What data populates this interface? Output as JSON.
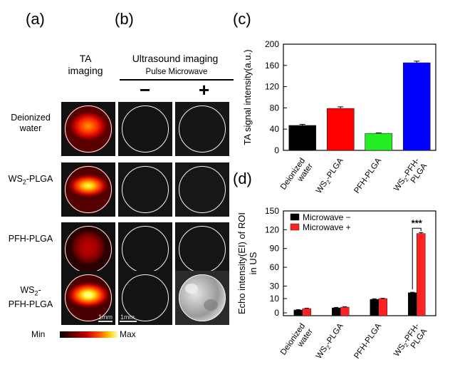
{
  "panel_labels": {
    "a": "(a)",
    "b": "(b)",
    "c": "(c)",
    "d": "(d)"
  },
  "imaging": {
    "ta_header": "TA imaging",
    "us_header": "Ultrasound imaging",
    "pulse_label": "Pulse Microwave",
    "minus_sign": "−",
    "plus_sign": "+",
    "row_labels": [
      "Deionized water",
      "WS2-PLGA",
      "PFH-PLGA",
      "WS2-PFH-PLGA"
    ],
    "scale_bar_1": "1mm",
    "scale_bar_2": "1mm",
    "colorbar_min": "Min",
    "colorbar_max": "Max"
  },
  "chart_data": [
    {
      "type": "bar",
      "panel": "(c)",
      "ylabel": "TA signal intensity(a.u.)",
      "ylim": [
        0,
        200
      ],
      "yticks": [
        0,
        40,
        80,
        120,
        160,
        200
      ],
      "categories": [
        "Deionized water",
        "WS2-PLGA",
        "PFH-PLGA",
        "WS2-PFH-PLGA"
      ],
      "values": [
        47,
        79,
        32,
        165
      ],
      "errors": [
        2,
        3,
        1,
        3
      ],
      "colors": [
        "#000000",
        "#ff0000",
        "#22ee22",
        "#0000ff"
      ]
    },
    {
      "type": "bar",
      "panel": "(d)",
      "ylabel": "Echo intensity(EI) of ROI in US",
      "ylim": [
        0,
        150
      ],
      "yticks": [
        0,
        10,
        30,
        60,
        90,
        120,
        150
      ],
      "ytick_labels": [
        "0",
        "10",
        "30",
        "60",
        "90",
        "120",
        "150"
      ],
      "categories": [
        "Deionized water",
        "WS2-PLGA",
        "PFH-PLGA",
        "WS2-PFH-PLGA"
      ],
      "series": [
        {
          "name": "Microwave −",
          "color": "#000000",
          "values": [
            2,
            3.5,
            9.5,
            19.5
          ],
          "errors": [
            0.3,
            0.3,
            0.4,
            0.6
          ]
        },
        {
          "name": "Microwave +",
          "color": "#ff2222",
          "values": [
            3,
            4,
            10,
            114
          ],
          "errors": [
            0.3,
            0.3,
            0.4,
            1.5
          ]
        }
      ],
      "annotation": "***",
      "legend_position": "top-left"
    }
  ]
}
